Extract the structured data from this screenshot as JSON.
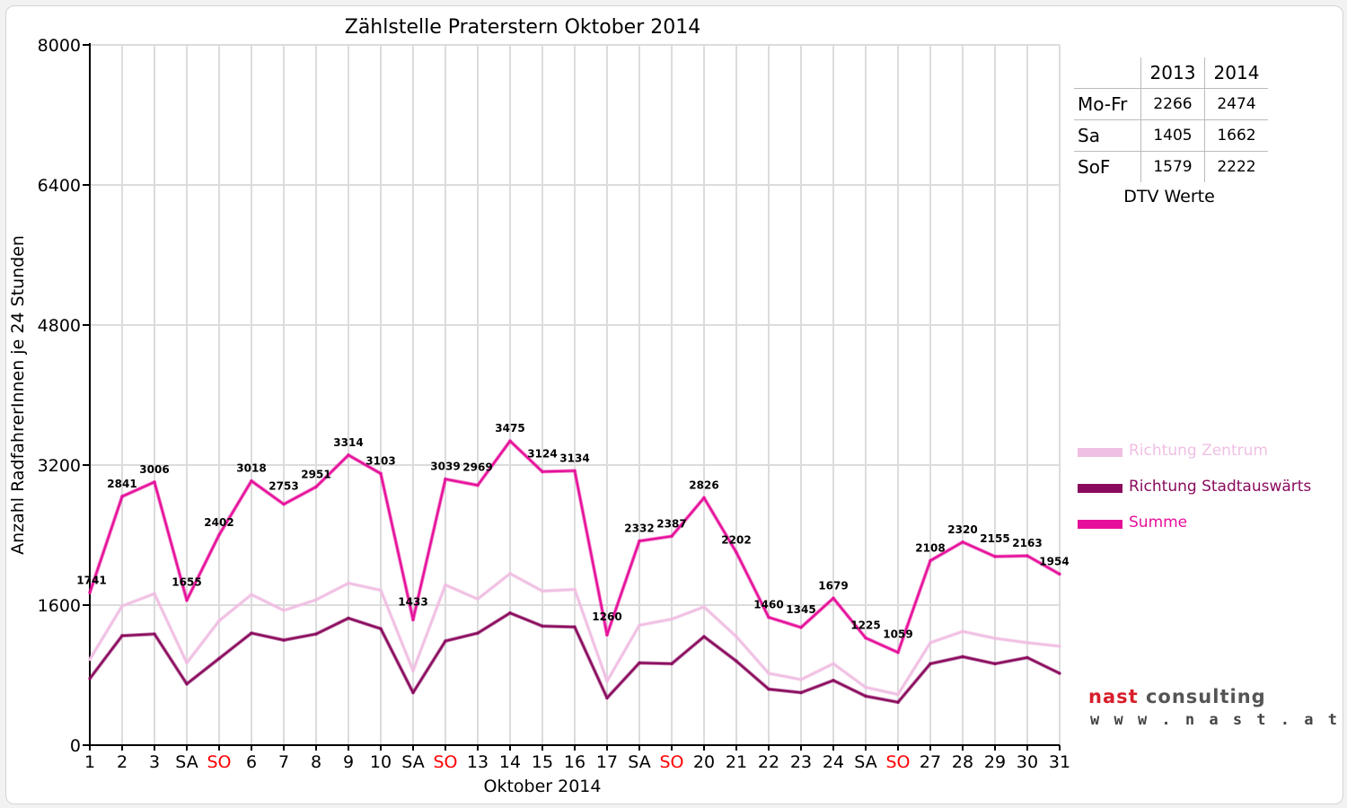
{
  "colors": {
    "zentrum": "#f0bfe3",
    "stadtauswaerts": "#8a0b5e",
    "summe": "#e6109a",
    "weekend_label": "#ff0000",
    "grid": "#dcdcdc"
  },
  "chart_data": {
    "type": "line",
    "title": "Zählstelle Praterstern Oktober 2014",
    "xlabel": "Oktober 2014",
    "ylabel": "Anzahl RadfahrerInnen je 24 Stunden",
    "ylim": [
      0,
      8000
    ],
    "yticks": [
      "0",
      "1600",
      "3200",
      "4800",
      "6400",
      "8000"
    ],
    "grid": true,
    "legend_position": "right",
    "categories": [
      "1",
      "2",
      "3",
      "SA",
      "SO",
      "6",
      "7",
      "8",
      "9",
      "10",
      "SA",
      "SO",
      "13",
      "14",
      "15",
      "16",
      "17",
      "SA",
      "SO",
      "20",
      "21",
      "22",
      "23",
      "24",
      "SA",
      "SO",
      "27",
      "28",
      "29",
      "30",
      "31"
    ],
    "weekend_categories": [
      "SO"
    ],
    "series": [
      {
        "name": "Richtung Zentrum",
        "color_key": "zentrum",
        "values": [
          980,
          1590,
          1730,
          940,
          1420,
          1720,
          1540,
          1660,
          1850,
          1770,
          850,
          1830,
          1670,
          1960,
          1760,
          1780,
          730,
          1370,
          1440,
          1580,
          1240,
          820,
          750,
          930,
          660,
          580,
          1170,
          1300,
          1220,
          1170,
          1130
        ]
      },
      {
        "name": "Richtung Stadtauswärts",
        "color_key": "stadtauswaerts",
        "values": [
          760,
          1250,
          1270,
          700,
          990,
          1280,
          1200,
          1270,
          1450,
          1330,
          600,
          1190,
          1280,
          1510,
          1360,
          1350,
          540,
          940,
          930,
          1240,
          960,
          640,
          600,
          740,
          560,
          490,
          930,
          1010,
          930,
          1000,
          820
        ]
      },
      {
        "name": "Summe",
        "color_key": "summe",
        "values": [
          1741,
          2841,
          3006,
          1655,
          2402,
          3018,
          2753,
          2951,
          3314,
          3103,
          1433,
          3039,
          2969,
          3475,
          3124,
          3134,
          1260,
          2332,
          2387,
          2826,
          2202,
          1460,
          1345,
          1679,
          1225,
          1059,
          2108,
          2320,
          2155,
          2163,
          1954
        ],
        "labels": [
          "1741",
          "2841",
          "3006",
          "1655",
          "2402",
          "3018",
          "2753",
          "2951",
          "3314",
          "3103",
          "1433",
          "3039",
          "2969",
          "3475",
          "3124",
          "3134",
          "1260",
          "2332",
          "2387",
          "2826",
          "2202",
          "1460",
          "1345",
          "1679",
          "1225",
          "1059",
          "2108",
          "2320",
          "2155",
          "2163",
          "1954"
        ]
      }
    ]
  },
  "dtv_table": {
    "headers": [
      "",
      "2013",
      "2014"
    ],
    "rows": [
      {
        "label": "Mo-Fr",
        "v2013": "2266",
        "v2014": "2474"
      },
      {
        "label": "Sa",
        "v2013": "1405",
        "v2014": "1662"
      },
      {
        "label": "SoF",
        "v2013": "1579",
        "v2014": "2222"
      }
    ],
    "caption": "DTV Werte"
  },
  "legend": [
    {
      "label": "Richtung Zentrum",
      "color": "#f0bfe3",
      "text_color": "#f0bfe3"
    },
    {
      "label": "Richtung Stadtauswärts",
      "color": "#8a0b5e",
      "text_color": "#8a0b5e"
    },
    {
      "label": "Summe",
      "color": "#e6109a",
      "text_color": "#e6109a"
    }
  ],
  "logo": {
    "brand_part1": "nast",
    "brand_part2": "consulting",
    "url": "w w w . n a s t . a t"
  }
}
